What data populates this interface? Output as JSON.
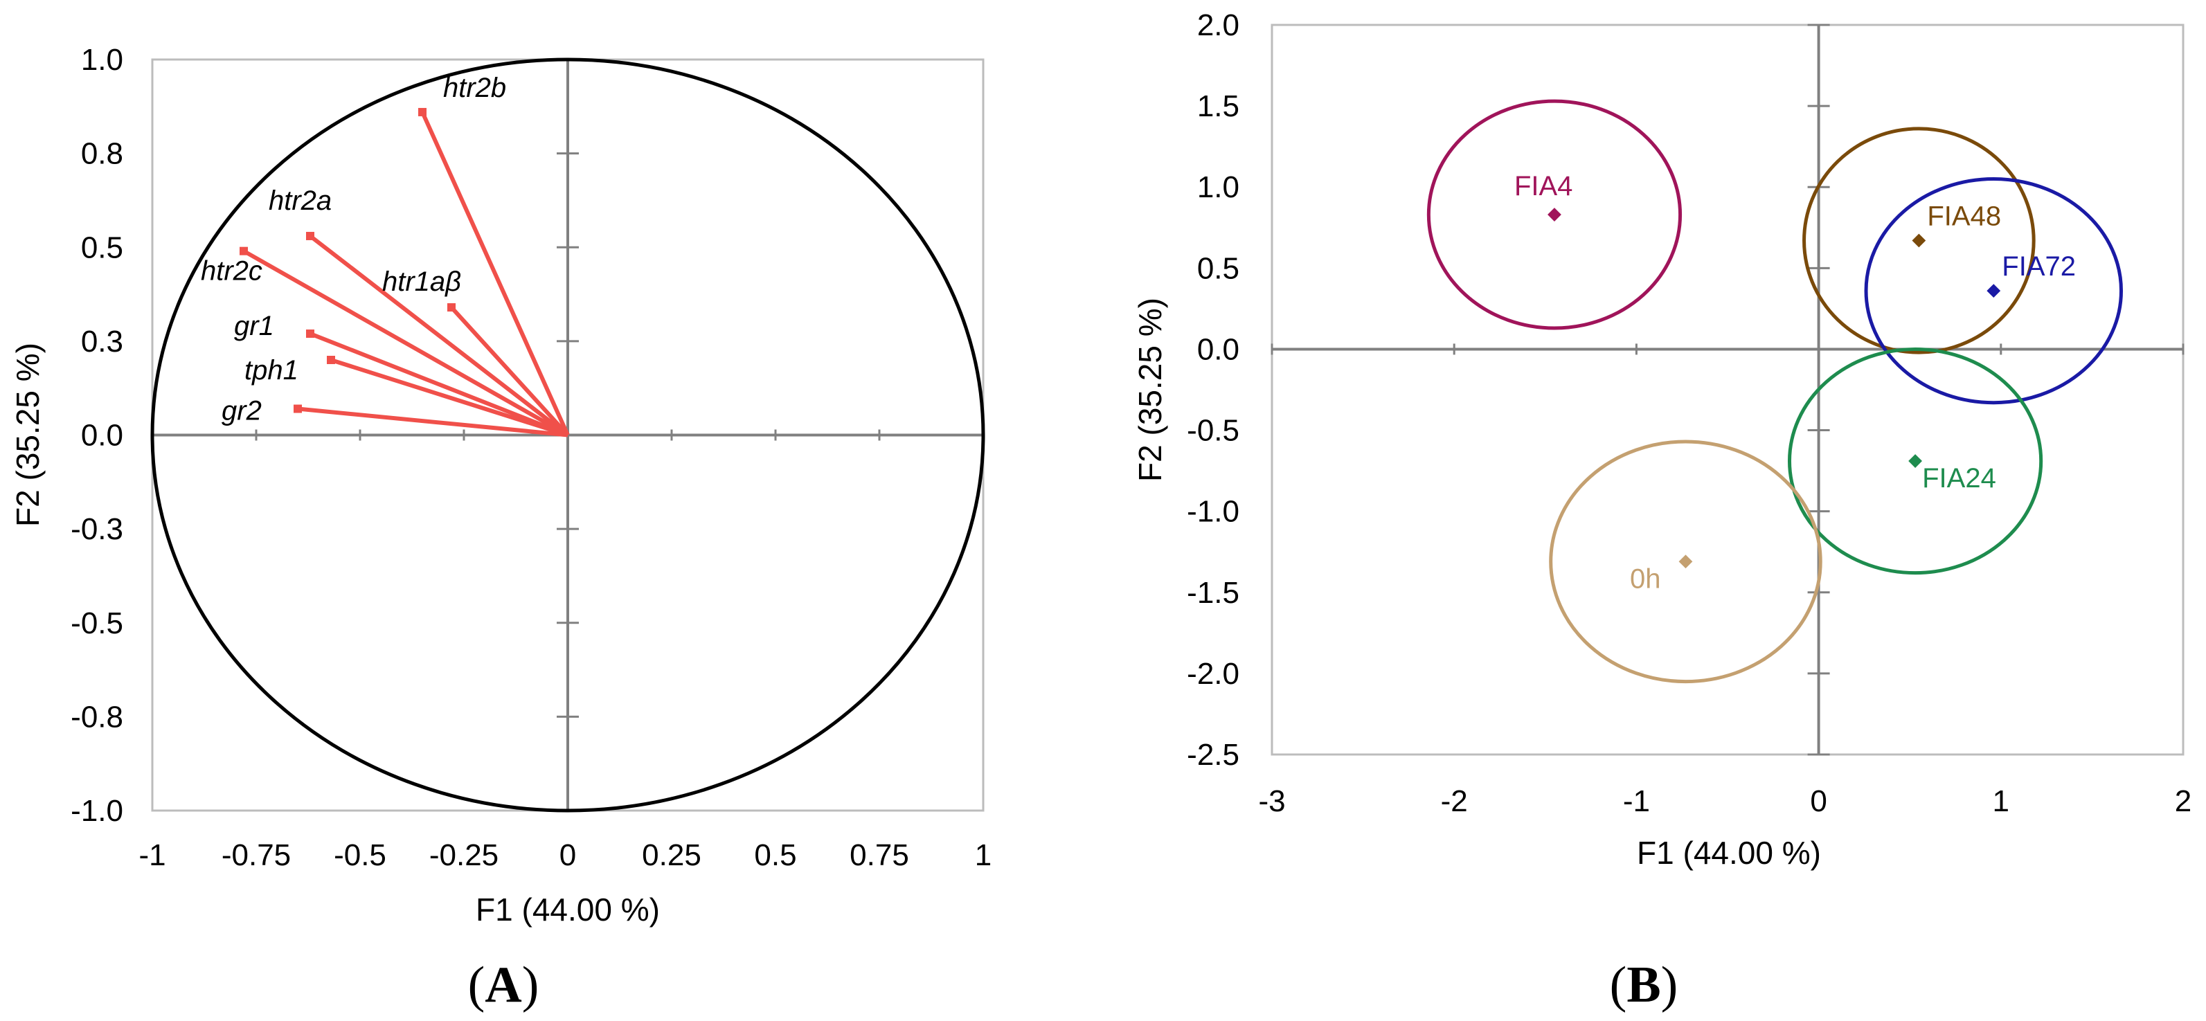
{
  "panels": {
    "a": {
      "open": "(",
      "letter": "A",
      "close": ")"
    },
    "b": {
      "open": "(",
      "letter": "B",
      "close": ")"
    }
  },
  "chart_data": [
    {
      "type": "scatter",
      "subtype": "correlation-circle",
      "title": "",
      "xlabel": "F1 (44.00 %)",
      "ylabel": "F2 (35.25 %)",
      "xlim": [
        -1,
        1
      ],
      "ylim": [
        -1,
        1
      ],
      "xticks": [
        "-1",
        "-0.75",
        "-0.5",
        "-0.25",
        "0",
        "0.25",
        "0.5",
        "0.75",
        "1"
      ],
      "yticks": [
        "-1.0",
        "-0.8",
        "-0.5",
        "-0.3",
        "0.0",
        "0.3",
        "0.5",
        "0.8",
        "1.0"
      ],
      "vector_color": "#f0504a",
      "circle_color": "#000000",
      "vectors": [
        {
          "label": "htr2b",
          "x": -0.35,
          "y": 0.86
        },
        {
          "label": "htr2a",
          "x": -0.62,
          "y": 0.53
        },
        {
          "label": "htr2c",
          "x": -0.78,
          "y": 0.49
        },
        {
          "label": "htr1aβ",
          "x": -0.28,
          "y": 0.34
        },
        {
          "label": "gr1",
          "x": -0.62,
          "y": 0.27
        },
        {
          "label": "tph1",
          "x": -0.57,
          "y": 0.2
        },
        {
          "label": "gr2",
          "x": -0.65,
          "y": 0.07
        }
      ]
    },
    {
      "type": "scatter",
      "subtype": "confidence-ellipses",
      "title": "",
      "xlabel": "F1 (44.00 %)",
      "ylabel": "F2 (35.25 %)",
      "xlim": [
        -3,
        2
      ],
      "ylim": [
        -2.5,
        2.0
      ],
      "xticks": [
        "-3",
        "-2",
        "-1",
        "0",
        "1",
        "2"
      ],
      "yticks": [
        "-2.5",
        "-2.0",
        "-1.5",
        "-1.0",
        "-0.5",
        "0.0",
        "0.5",
        "1.0",
        "1.5",
        "2.0"
      ],
      "groups": [
        {
          "label": "FIA4",
          "color": "#a0145a",
          "x": -1.45,
          "y": 0.83,
          "rx": 0.69,
          "ry": 0.7
        },
        {
          "label": "FIA48",
          "color": "#7a4a0a",
          "x": 0.55,
          "y": 0.67,
          "rx": 0.63,
          "ry": 0.69
        },
        {
          "label": "FIA72",
          "color": "#1a1aa5",
          "x": 0.96,
          "y": 0.36,
          "rx": 0.7,
          "ry": 0.69
        },
        {
          "label": "FIA24",
          "color": "#1e8c4e",
          "x": 0.53,
          "y": -0.69,
          "rx": 0.69,
          "ry": 0.69
        },
        {
          "label": "0h",
          "color": "#c4a070",
          "x": -0.73,
          "y": -1.31,
          "rx": 0.74,
          "ry": 0.74
        }
      ]
    }
  ]
}
